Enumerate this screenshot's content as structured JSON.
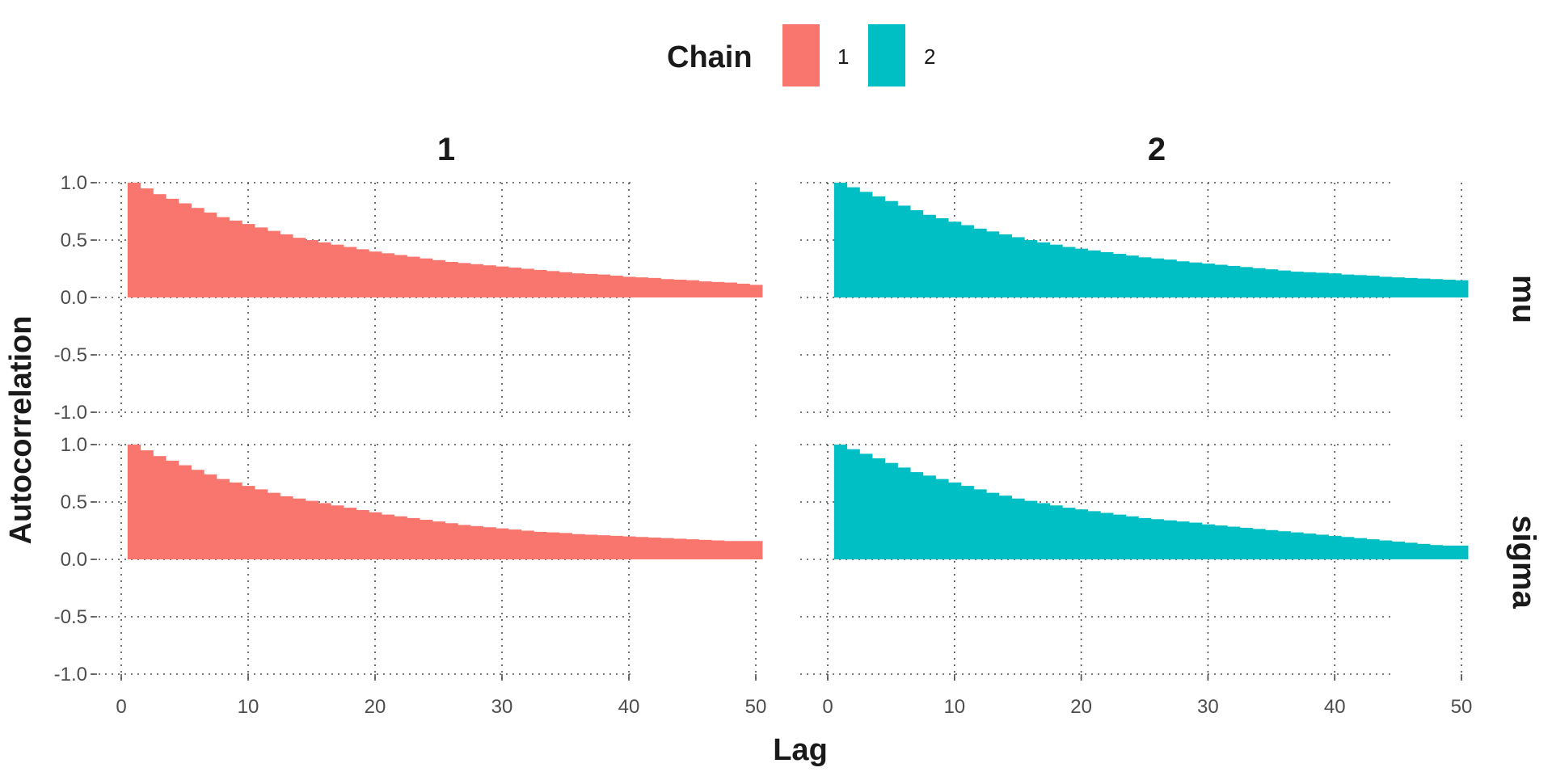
{
  "legend": {
    "title": "Chain",
    "items": [
      {
        "label": "1",
        "color": "#F8766D"
      },
      {
        "label": "2",
        "color": "#00BFC4"
      }
    ]
  },
  "axes": {
    "xlabel": "Lag",
    "ylabel": "Autocorrelation"
  },
  "facets": {
    "columns": [
      "1",
      "2"
    ],
    "rows": [
      "mu",
      "sigma"
    ]
  },
  "chart_data": {
    "type": "bar",
    "title": "",
    "xlabel": "Lag",
    "ylabel": "Autocorrelation",
    "xlim": [
      0,
      51
    ],
    "ylim": [
      -1.0,
      1.0
    ],
    "x_ticks": [
      0,
      10,
      20,
      30,
      40,
      50
    ],
    "y_ticks": [
      -1.0,
      -0.5,
      0.0,
      0.5,
      1.0
    ],
    "y_tick_labels": [
      "-1.0",
      "-0.5",
      "0.0",
      "0.5",
      "1.0"
    ],
    "grid": true,
    "legend_position": "top",
    "x": [
      1,
      2,
      3,
      4,
      5,
      6,
      7,
      8,
      9,
      10,
      11,
      12,
      13,
      14,
      15,
      16,
      17,
      18,
      19,
      20,
      21,
      22,
      23,
      24,
      25,
      26,
      27,
      28,
      29,
      30,
      31,
      32,
      33,
      34,
      35,
      36,
      37,
      38,
      39,
      40,
      41,
      42,
      43,
      44,
      45,
      46,
      47,
      48,
      49,
      50
    ],
    "panels": [
      {
        "row": "mu",
        "chain": "1",
        "color": "#F8766D",
        "values": [
          1.0,
          0.95,
          0.9,
          0.86,
          0.82,
          0.78,
          0.74,
          0.7,
          0.67,
          0.64,
          0.61,
          0.58,
          0.55,
          0.52,
          0.5,
          0.48,
          0.46,
          0.44,
          0.42,
          0.4,
          0.385,
          0.37,
          0.355,
          0.34,
          0.325,
          0.31,
          0.3,
          0.29,
          0.28,
          0.27,
          0.26,
          0.25,
          0.24,
          0.23,
          0.22,
          0.21,
          0.205,
          0.2,
          0.19,
          0.18,
          0.175,
          0.17,
          0.16,
          0.155,
          0.15,
          0.14,
          0.135,
          0.13,
          0.12,
          0.11
        ]
      },
      {
        "row": "mu",
        "chain": "2",
        "color": "#00BFC4",
        "values": [
          1.0,
          0.96,
          0.92,
          0.88,
          0.84,
          0.8,
          0.76,
          0.72,
          0.69,
          0.66,
          0.63,
          0.6,
          0.575,
          0.55,
          0.525,
          0.5,
          0.48,
          0.46,
          0.44,
          0.425,
          0.41,
          0.395,
          0.38,
          0.365,
          0.35,
          0.34,
          0.33,
          0.315,
          0.305,
          0.295,
          0.285,
          0.275,
          0.265,
          0.255,
          0.245,
          0.235,
          0.225,
          0.22,
          0.215,
          0.21,
          0.2,
          0.195,
          0.19,
          0.18,
          0.175,
          0.17,
          0.165,
          0.16,
          0.155,
          0.15
        ]
      },
      {
        "row": "sigma",
        "chain": "1",
        "color": "#F8766D",
        "values": [
          1.0,
          0.95,
          0.9,
          0.86,
          0.82,
          0.78,
          0.74,
          0.7,
          0.67,
          0.64,
          0.61,
          0.58,
          0.55,
          0.53,
          0.51,
          0.49,
          0.47,
          0.45,
          0.43,
          0.41,
          0.39,
          0.375,
          0.36,
          0.345,
          0.33,
          0.315,
          0.3,
          0.29,
          0.28,
          0.27,
          0.26,
          0.25,
          0.24,
          0.235,
          0.23,
          0.22,
          0.215,
          0.21,
          0.205,
          0.2,
          0.195,
          0.19,
          0.185,
          0.18,
          0.175,
          0.17,
          0.165,
          0.16,
          0.16,
          0.16
        ]
      },
      {
        "row": "sigma",
        "chain": "2",
        "color": "#00BFC4",
        "values": [
          1.0,
          0.96,
          0.92,
          0.88,
          0.84,
          0.8,
          0.76,
          0.73,
          0.7,
          0.67,
          0.64,
          0.61,
          0.58,
          0.555,
          0.53,
          0.51,
          0.49,
          0.47,
          0.45,
          0.435,
          0.42,
          0.405,
          0.39,
          0.375,
          0.36,
          0.35,
          0.34,
          0.33,
          0.32,
          0.305,
          0.295,
          0.285,
          0.275,
          0.265,
          0.255,
          0.245,
          0.235,
          0.225,
          0.215,
          0.205,
          0.195,
          0.185,
          0.175,
          0.165,
          0.155,
          0.145,
          0.135,
          0.125,
          0.12,
          0.12
        ]
      }
    ]
  }
}
